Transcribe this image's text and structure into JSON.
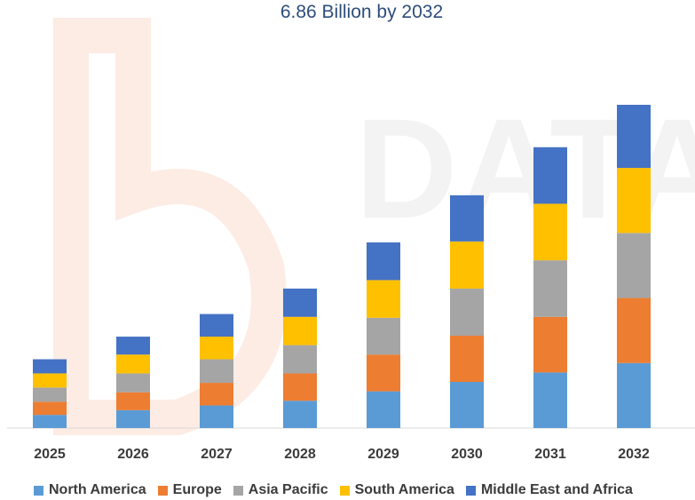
{
  "chart_data": {
    "type": "bar",
    "stacked": true,
    "title": "6.86 Billion by 2032",
    "xlabel": "",
    "ylabel": "",
    "ylim": [
      0,
      7
    ],
    "grid": false,
    "legend_position": "bottom",
    "categories": [
      "2025",
      "2026",
      "2027",
      "2028",
      "2029",
      "2030",
      "2031",
      "2032"
    ],
    "series": [
      {
        "name": "North America",
        "color": "#5b9bd5",
        "values": [
          0.28,
          0.38,
          0.48,
          0.58,
          0.78,
          0.98,
          1.18,
          1.38
        ]
      },
      {
        "name": "Europe",
        "color": "#ed7d31",
        "values": [
          0.28,
          0.38,
          0.48,
          0.58,
          0.78,
          0.98,
          1.18,
          1.38
        ]
      },
      {
        "name": "Asia Pacific",
        "color": "#a5a5a5",
        "values": [
          0.3,
          0.4,
          0.5,
          0.6,
          0.78,
          1.0,
          1.2,
          1.38
        ]
      },
      {
        "name": "South America",
        "color": "#ffc000",
        "values": [
          0.3,
          0.4,
          0.48,
          0.6,
          0.8,
          1.0,
          1.2,
          1.38
        ]
      },
      {
        "name": "Middle East and Africa",
        "color": "#4472c4",
        "values": [
          0.3,
          0.38,
          0.48,
          0.6,
          0.8,
          0.98,
          1.2,
          1.34
        ]
      }
    ]
  }
}
